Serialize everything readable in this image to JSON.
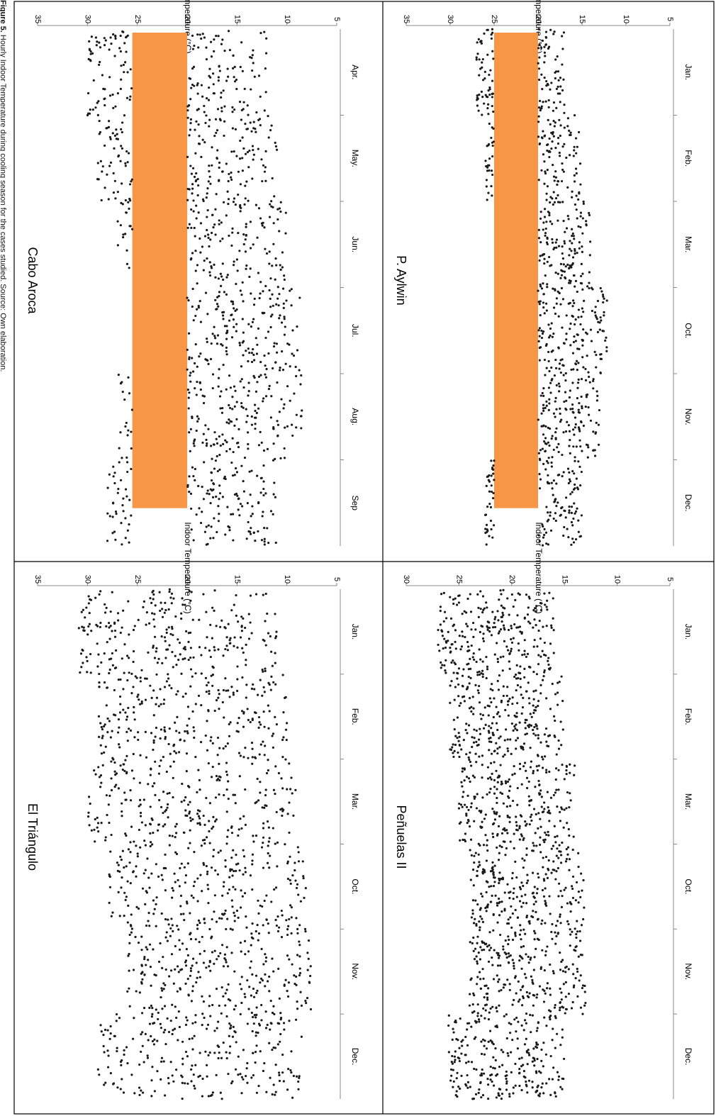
{
  "caption": {
    "label": "Figure 5.",
    "text": "Hourly Indoor Temperature during cooling season for the cases studied. Source: Own elaboration."
  },
  "colors": {
    "band": "#F79646",
    "marker": "#1a1a1a",
    "frame": "#000000",
    "axis": "#888888"
  },
  "chart_data": [
    {
      "type": "scatter",
      "title": "Cabo Aroca",
      "ylabel": "Indoor Temperature (°C)",
      "ylim": [
        5,
        35
      ],
      "yticks": [
        5,
        10,
        15,
        20,
        25,
        30,
        35
      ],
      "xlabels": [
        "Apr.",
        "May.",
        "Jun.",
        "Jul.",
        "Aug.",
        "Sep"
      ],
      "comfort_band": [
        20,
        25.5
      ],
      "series_envelope": [
        {
          "period": "Apr.",
          "min": 12,
          "max": 30
        },
        {
          "period": "May.",
          "min": 11,
          "max": 29
        },
        {
          "period": "Jun.",
          "min": 10,
          "max": 27
        },
        {
          "period": "Jul.",
          "min": 8.5,
          "max": 25
        },
        {
          "period": "Aug.",
          "min": 8.5,
          "max": 27
        },
        {
          "period": "Sep",
          "min": 11,
          "max": 28
        }
      ]
    },
    {
      "type": "scatter",
      "title": "El Triángulo",
      "ylabel": "Indoor Temperature (°C)",
      "ylim": [
        5,
        35
      ],
      "yticks": [
        5,
        10,
        15,
        20,
        25,
        30,
        35
      ],
      "xlabels": [
        "Jan.",
        "Feb.",
        "Mar.",
        "Oct.",
        "Nov.",
        "Dec."
      ],
      "comfort_band": null,
      "series_envelope": [
        {
          "period": "Jan.",
          "min": 11,
          "max": 31
        },
        {
          "period": "Feb.",
          "min": 10,
          "max": 29
        },
        {
          "period": "Mar.",
          "min": 9,
          "max": 30
        },
        {
          "period": "Oct.",
          "min": 8,
          "max": 28
        },
        {
          "period": "Nov.",
          "min": 7.5,
          "max": 26
        },
        {
          "period": "Dec.",
          "min": 8,
          "max": 29
        }
      ]
    },
    {
      "type": "scatter",
      "title": "P. Aylwin",
      "ylabel": "Indoor Temperature (°C)",
      "ylim": [
        5,
        35
      ],
      "yticks": [
        5,
        10,
        15,
        20,
        25,
        30,
        35
      ],
      "xlabels": [
        "Jan.",
        "Feb.",
        "Mar.",
        "Oct.",
        "Nov.",
        "Dec."
      ],
      "comfort_band": [
        20,
        25
      ],
      "series_envelope": [
        {
          "period": "Jan.",
          "min": 17,
          "max": 27
        },
        {
          "period": "Feb.",
          "min": 15,
          "max": 26
        },
        {
          "period": "Mar.",
          "min": 14,
          "max": 25
        },
        {
          "period": "Oct.",
          "min": 12,
          "max": 24
        },
        {
          "period": "Nov.",
          "min": 13,
          "max": 24
        },
        {
          "period": "Dec.",
          "min": 15,
          "max": 26
        }
      ]
    },
    {
      "type": "scatter",
      "title": "Peñuelas II",
      "ylabel": "Indoor Temperature (°C)",
      "ylim": [
        5,
        30
      ],
      "yticks": [
        5,
        10,
        15,
        20,
        25,
        30
      ],
      "xlabels": [
        "Jan.",
        "Feb.",
        "Mar.",
        "Oct.",
        "Nov.",
        "Dec."
      ],
      "comfort_band": null,
      "series_envelope": [
        {
          "period": "Jan.",
          "min": 16,
          "max": 27
        },
        {
          "period": "Feb.",
          "min": 15,
          "max": 26
        },
        {
          "period": "Mar.",
          "min": 14,
          "max": 25
        },
        {
          "period": "Oct.",
          "min": 13,
          "max": 24
        },
        {
          "period": "Nov.",
          "min": 13,
          "max": 24
        },
        {
          "period": "Dec.",
          "min": 15,
          "max": 26
        }
      ]
    }
  ]
}
